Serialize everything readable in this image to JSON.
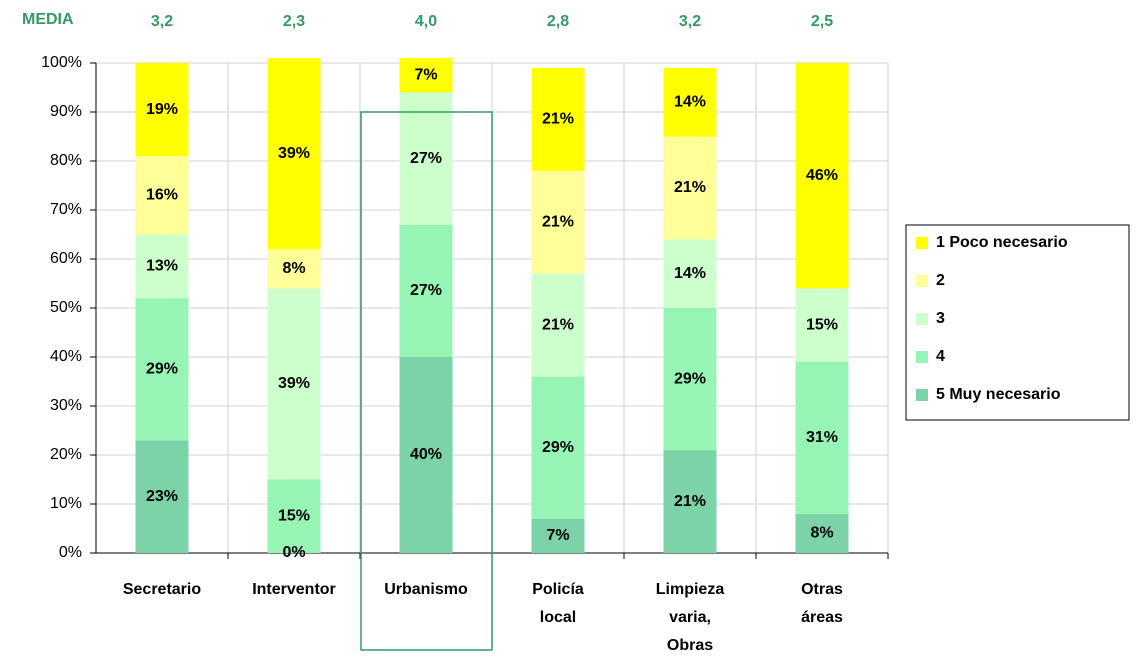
{
  "chart_data": {
    "type": "stacked_bar",
    "categories": [
      "Secretario",
      "Interventor",
      "Urbanismo",
      "Policía local",
      "Limpieza varia, Obras",
      "Otras áreas"
    ],
    "media": {
      "label": "MEDIA",
      "values": [
        3.2,
        2.3,
        4.0,
        2.8,
        3.2,
        2.5
      ],
      "value_labels": [
        "3,2",
        "2,3",
        "4,0",
        "2,8",
        "3,2",
        "2,5"
      ],
      "color": "#339966"
    },
    "series": [
      {
        "name": "1 Poco necesario",
        "color": "#ffff00",
        "values": [
          19,
          39,
          7,
          21,
          14,
          46
        ],
        "value_labels": [
          "19%",
          "39%",
          "7%",
          "21%",
          "14%",
          "46%"
        ]
      },
      {
        "name": "2",
        "color": "#ffff99",
        "values": [
          16,
          8,
          null,
          21,
          21,
          null
        ],
        "value_labels": [
          "16%",
          "8%",
          null,
          "21%",
          "21%",
          null
        ]
      },
      {
        "name": "3",
        "color": "#ccffcc",
        "values": [
          13,
          39,
          27,
          21,
          14,
          15
        ],
        "value_labels": [
          "13%",
          "39%",
          "27%",
          "21%",
          "14%",
          "15%"
        ]
      },
      {
        "name": "4",
        "color": "#96f5b4",
        "values": [
          29,
          15,
          27,
          29,
          29,
          31
        ],
        "value_labels": [
          "29%",
          "15%",
          "27%",
          "29%",
          "29%",
          "31%"
        ]
      },
      {
        "name": "5 Muy necesario",
        "color": "#7dd3a8",
        "values": [
          23,
          0,
          40,
          7,
          21,
          8
        ],
        "value_labels": [
          "23%",
          "0%",
          "40%",
          "7%",
          "21%",
          "8%"
        ]
      }
    ],
    "ylim": [
      0,
      100
    ],
    "yticks": [
      {
        "value": 0,
        "label": "0%"
      },
      {
        "value": 10,
        "label": "10%"
      },
      {
        "value": 20,
        "label": "20%"
      },
      {
        "value": 30,
        "label": "30%"
      },
      {
        "value": 40,
        "label": "40%"
      },
      {
        "value": 50,
        "label": "50%"
      },
      {
        "value": 60,
        "label": "60%"
      },
      {
        "value": 70,
        "label": "70%"
      },
      {
        "value": 80,
        "label": "80%"
      },
      {
        "value": 90,
        "label": "90%"
      },
      {
        "value": 100,
        "label": "100%"
      }
    ],
    "grid": true
  }
}
